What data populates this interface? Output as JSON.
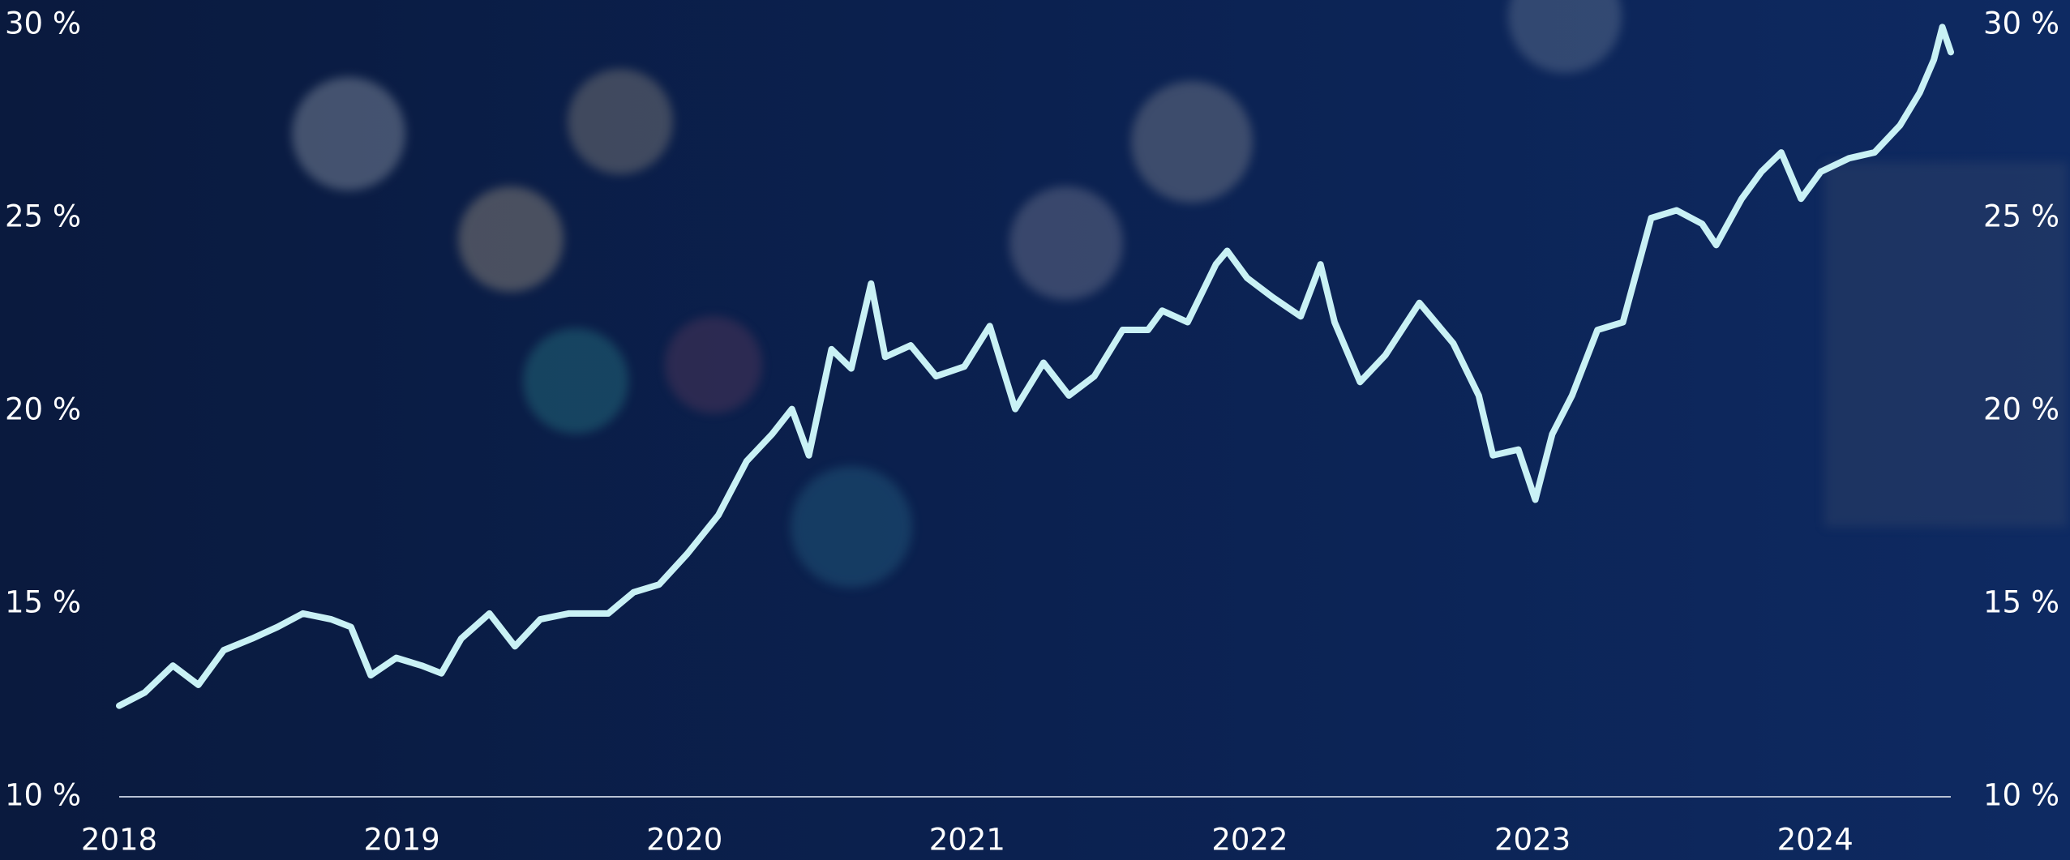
{
  "chart_data": {
    "type": "line",
    "x": [
      2018.0,
      2018.09,
      2018.19,
      2018.28,
      2018.37,
      2018.47,
      2018.56,
      2018.65,
      2018.75,
      2018.82,
      2018.89,
      2018.98,
      2019.07,
      2019.14,
      2019.21,
      2019.31,
      2019.4,
      2019.49,
      2019.59,
      2019.73,
      2019.82,
      2019.91,
      2020.01,
      2020.12,
      2020.22,
      2020.31,
      2020.38,
      2020.44,
      2020.52,
      2020.59,
      2020.66,
      2020.71,
      2020.8,
      2020.89,
      2020.99,
      2021.08,
      2021.17,
      2021.27,
      2021.36,
      2021.45,
      2021.55,
      2021.64,
      2021.69,
      2021.78,
      2021.88,
      2021.92,
      2021.99,
      2022.08,
      2022.18,
      2022.25,
      2022.3,
      2022.39,
      2022.48,
      2022.6,
      2022.72,
      2022.81,
      2022.86,
      2022.95,
      2023.01,
      2023.07,
      2023.14,
      2023.23,
      2023.32,
      2023.42,
      2023.51,
      2023.6,
      2023.65,
      2023.74,
      2023.81,
      2023.88,
      2023.95,
      2024.02,
      2024.12,
      2024.21,
      2024.3,
      2024.37,
      2024.42,
      2024.45,
      2024.48
    ],
    "series": [
      {
        "color": "#c9f1f5",
        "values": [
          12.36,
          12.7,
          13.4,
          12.9,
          13.8,
          14.1,
          14.4,
          14.75,
          14.6,
          14.4,
          13.15,
          13.6,
          13.4,
          13.2,
          14.1,
          14.75,
          13.9,
          14.6,
          14.75,
          14.75,
          15.3,
          15.5,
          16.3,
          17.3,
          18.7,
          19.4,
          20.05,
          18.85,
          21.6,
          21.1,
          23.3,
          21.4,
          21.7,
          20.9,
          21.15,
          22.2,
          20.05,
          21.25,
          20.4,
          20.9,
          22.1,
          22.1,
          22.6,
          22.3,
          23.8,
          24.15,
          23.45,
          22.95,
          22.45,
          23.8,
          22.3,
          20.75,
          21.45,
          22.8,
          21.75,
          20.4,
          18.85,
          19.0,
          17.7,
          19.4,
          20.4,
          22.1,
          22.3,
          25.0,
          25.2,
          24.85,
          24.3,
          25.5,
          26.2,
          26.7,
          25.5,
          26.2,
          26.55,
          26.7,
          27.4,
          28.25,
          29.1,
          29.95,
          29.3
        ]
      }
    ],
    "xlim": [
      2018,
      2024.48
    ],
    "xticks": [
      2018,
      2019,
      2020,
      2021,
      2022,
      2023,
      2024
    ],
    "ylim": [
      10,
      30
    ],
    "yticks": [
      {
        "value": 10,
        "label": "10 %"
      },
      {
        "value": 15,
        "label": "15 %"
      },
      {
        "value": 20,
        "label": "20 %"
      },
      {
        "value": 25,
        "label": "25 %"
      },
      {
        "value": 30,
        "label": "30 %"
      }
    ]
  }
}
